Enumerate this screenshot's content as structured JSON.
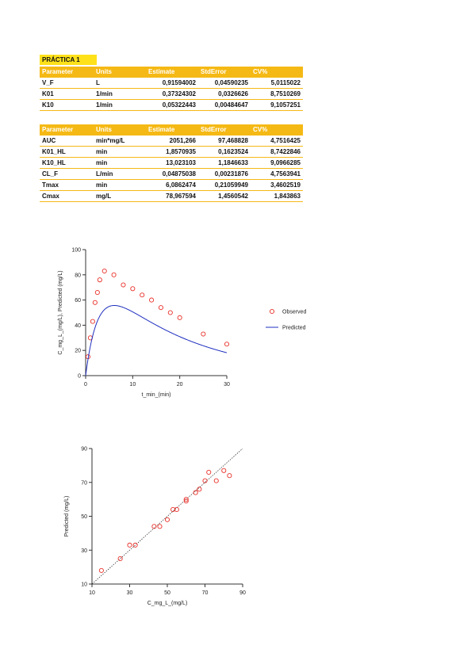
{
  "title": "PRÁCTICA 1",
  "table1": {
    "headers": [
      "Parameter",
      "Units",
      "Estimate",
      "StdError",
      "CV%"
    ],
    "rows": [
      [
        "V_F",
        "L",
        "0,91594002",
        "0,04590235",
        "5,0115022"
      ],
      [
        "K01",
        "1/min",
        "0,37324302",
        "0,0326626",
        "8,7510269"
      ],
      [
        "K10",
        "1/min",
        "0,05322443",
        "0,00484647",
        "9,1057251"
      ]
    ]
  },
  "table2": {
    "headers": [
      "Parameter",
      "Units",
      "Estimate",
      "StdError",
      "CV%"
    ],
    "rows": [
      [
        "AUC",
        "min*mg/L",
        "2051,266",
        "97,468828",
        "4,7516425"
      ],
      [
        "K01_HL",
        "min",
        "1,8570935",
        "0,1623524",
        "8,7422846"
      ],
      [
        "K10_HL",
        "min",
        "13,023103",
        "1,1846633",
        "9,0966285"
      ],
      [
        "CL_F",
        "L/min",
        "0,04875038",
        "0,00231876",
        "4,7563941"
      ],
      [
        "Tmax",
        "min",
        "6,0862474",
        "0,21059949",
        "3,4602519"
      ],
      [
        "Cmax",
        "mg/L",
        "78,967594",
        "1,4560542",
        "1,843863"
      ]
    ]
  },
  "chart_data": [
    {
      "type": "scatter",
      "xlabel": "t_min_(min)",
      "ylabel": "C_mg_L_(mg/L), Predicted (mg/L)",
      "xlim": [
        0,
        30
      ],
      "ylim": [
        0,
        100
      ],
      "xticks": [
        0,
        10,
        20,
        30
      ],
      "yticks": [
        0,
        20,
        40,
        60,
        80,
        100
      ],
      "legend_position": "right",
      "series": [
        {
          "name": "Observed",
          "marker": "open-circle",
          "color": "#e8312a",
          "x": [
            0.5,
            1,
            1.5,
            2,
            2.5,
            3,
            4,
            6,
            8,
            10,
            12,
            14,
            16,
            18,
            20,
            25,
            30
          ],
          "y": [
            15,
            30,
            43,
            58,
            66,
            76,
            83,
            80,
            72,
            69,
            64,
            60,
            54,
            50,
            46,
            33,
            25
          ]
        },
        {
          "name": "Predicted",
          "line": "solid",
          "color": "#1f2fbf",
          "params": {
            "V_F": 0.91594002,
            "K01": 0.37324302,
            "K10": 0.05322443,
            "dose": 70.5
          }
        }
      ]
    },
    {
      "type": "scatter",
      "xlabel": "C_mg_L_(mg/L)",
      "ylabel": "Predicted (mg/L)",
      "xlim": [
        10,
        90
      ],
      "ylim": [
        10,
        90
      ],
      "xticks": [
        10,
        30,
        50,
        70,
        90
      ],
      "yticks": [
        10,
        30,
        50,
        70,
        90
      ],
      "identity_line": true,
      "series": [
        {
          "name": "",
          "marker": "open-circle",
          "color": "#e8312a",
          "x": [
            15,
            25,
            30,
            33,
            43,
            46,
            50,
            53,
            55,
            60,
            60,
            65,
            67,
            70,
            72,
            76,
            80,
            83
          ],
          "y": [
            18,
            25,
            33,
            33,
            44,
            44,
            48,
            54,
            54,
            60,
            59,
            64,
            66,
            71,
            76,
            71,
            77,
            74
          ]
        }
      ]
    }
  ]
}
